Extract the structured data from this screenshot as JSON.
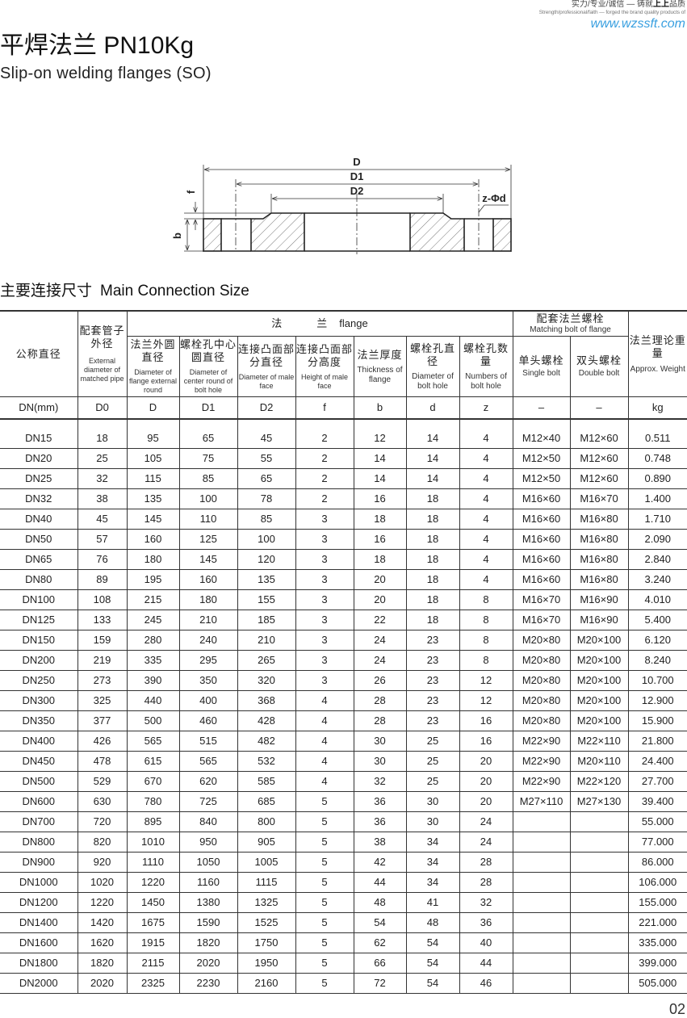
{
  "header": {
    "slogan_zh_prefix": "实力/专业/诚信 — 铸就",
    "slogan_zh_bold": "上上",
    "slogan_zh_suffix": "品质",
    "slogan_en": "Strength/professional/faith — forged the brand quality products of",
    "url": "www.wzssft.com"
  },
  "title": "平焊法兰 PN10Kg",
  "subtitle": "Slip-on welding flanges (SO)",
  "diagram": {
    "D": "D",
    "D1": "D1",
    "D2": "D2",
    "f": "f",
    "b": "b",
    "hole": "z-Φd"
  },
  "section": {
    "zh": "主要连接尺寸",
    "en": "Main Connection Size"
  },
  "table": {
    "group_flange_zh": "法　　　兰",
    "group_flange_en": "flange",
    "group_bolt_zh": "配套法兰螺栓",
    "group_bolt_en": "Matching bolt of flange",
    "columns": [
      {
        "zh": "公称直径",
        "en": "",
        "unit": "DN(mm)"
      },
      {
        "zh": "配套管子外径",
        "en": "External diameter of matched pipe",
        "unit": "D0"
      },
      {
        "zh": "法兰外圆直径",
        "en": "Diameter of flange external round",
        "unit": "D"
      },
      {
        "zh": "螺栓孔中心圆直径",
        "en": "Diameter of center round of bolt hole",
        "unit": "D1"
      },
      {
        "zh": "连接凸面部分直径",
        "en": "Diameter of male face",
        "unit": "D2"
      },
      {
        "zh": "连接凸面部分高度",
        "en": "Height of male face",
        "unit": "f"
      },
      {
        "zh": "法兰厚度",
        "en": "Thickness of flange",
        "unit": "b"
      },
      {
        "zh": "螺栓孔直 径",
        "en": "Diameter of bolt hole",
        "unit": "d"
      },
      {
        "zh": "螺栓孔数 量",
        "en": "Numbers of bolt hole",
        "unit": "z"
      },
      {
        "zh": "单头螺栓",
        "en": "Single bolt",
        "unit": "–"
      },
      {
        "zh": "双头螺栓",
        "en": "Double bolt",
        "unit": "–"
      },
      {
        "zh": "法兰理论重量",
        "en": "Approx. Weight",
        "unit": "kg"
      }
    ],
    "rows": [
      [
        "DN15",
        "18",
        "95",
        "65",
        "45",
        "2",
        "12",
        "14",
        "4",
        "M12×40",
        "M12×60",
        "0.511"
      ],
      [
        "DN20",
        "25",
        "105",
        "75",
        "55",
        "2",
        "14",
        "14",
        "4",
        "M12×50",
        "M12×60",
        "0.748"
      ],
      [
        "DN25",
        "32",
        "115",
        "85",
        "65",
        "2",
        "14",
        "14",
        "4",
        "M12×50",
        "M12×60",
        "0.890"
      ],
      [
        "DN32",
        "38",
        "135",
        "100",
        "78",
        "2",
        "16",
        "18",
        "4",
        "M16×60",
        "M16×70",
        "1.400"
      ],
      [
        "DN40",
        "45",
        "145",
        "110",
        "85",
        "3",
        "18",
        "18",
        "4",
        "M16×60",
        "M16×80",
        "1.710"
      ],
      [
        "DN50",
        "57",
        "160",
        "125",
        "100",
        "3",
        "16",
        "18",
        "4",
        "M16×60",
        "M16×80",
        "2.090"
      ],
      [
        "DN65",
        "76",
        "180",
        "145",
        "120",
        "3",
        "18",
        "18",
        "4",
        "M16×60",
        "M16×80",
        "2.840"
      ],
      [
        "DN80",
        "89",
        "195",
        "160",
        "135",
        "3",
        "20",
        "18",
        "4",
        "M16×60",
        "M16×80",
        "3.240"
      ],
      [
        "DN100",
        "108",
        "215",
        "180",
        "155",
        "3",
        "20",
        "18",
        "8",
        "M16×70",
        "M16×90",
        "4.010"
      ],
      [
        "DN125",
        "133",
        "245",
        "210",
        "185",
        "3",
        "22",
        "18",
        "8",
        "M16×70",
        "M16×90",
        "5.400"
      ],
      [
        "DN150",
        "159",
        "280",
        "240",
        "210",
        "3",
        "24",
        "23",
        "8",
        "M20×80",
        "M20×100",
        "6.120"
      ],
      [
        "DN200",
        "219",
        "335",
        "295",
        "265",
        "3",
        "24",
        "23",
        "8",
        "M20×80",
        "M20×100",
        "8.240"
      ],
      [
        "DN250",
        "273",
        "390",
        "350",
        "320",
        "3",
        "26",
        "23",
        "12",
        "M20×80",
        "M20×100",
        "10.700"
      ],
      [
        "DN300",
        "325",
        "440",
        "400",
        "368",
        "4",
        "28",
        "23",
        "12",
        "M20×80",
        "M20×100",
        "12.900"
      ],
      [
        "DN350",
        "377",
        "500",
        "460",
        "428",
        "4",
        "28",
        "23",
        "16",
        "M20×80",
        "M20×100",
        "15.900"
      ],
      [
        "DN400",
        "426",
        "565",
        "515",
        "482",
        "4",
        "30",
        "25",
        "16",
        "M22×90",
        "M22×110",
        "21.800"
      ],
      [
        "DN450",
        "478",
        "615",
        "565",
        "532",
        "4",
        "30",
        "25",
        "20",
        "M22×90",
        "M20×110",
        "24.400"
      ],
      [
        "DN500",
        "529",
        "670",
        "620",
        "585",
        "4",
        "32",
        "25",
        "20",
        "M22×90",
        "M22×120",
        "27.700"
      ],
      [
        "DN600",
        "630",
        "780",
        "725",
        "685",
        "5",
        "36",
        "30",
        "20",
        "M27×110",
        "M27×130",
        "39.400"
      ],
      [
        "DN700",
        "720",
        "895",
        "840",
        "800",
        "5",
        "36",
        "30",
        "24",
        "",
        "",
        "55.000"
      ],
      [
        "DN800",
        "820",
        "1010",
        "950",
        "905",
        "5",
        "38",
        "34",
        "24",
        "",
        "",
        "77.000"
      ],
      [
        "DN900",
        "920",
        "1110",
        "1050",
        "1005",
        "5",
        "42",
        "34",
        "28",
        "",
        "",
        "86.000"
      ],
      [
        "DN1000",
        "1020",
        "1220",
        "1160",
        "1115",
        "5",
        "44",
        "34",
        "28",
        "",
        "",
        "106.000"
      ],
      [
        "DN1200",
        "1220",
        "1450",
        "1380",
        "1325",
        "5",
        "48",
        "41",
        "32",
        "",
        "",
        "155.000"
      ],
      [
        "DN1400",
        "1420",
        "1675",
        "1590",
        "1525",
        "5",
        "54",
        "48",
        "36",
        "",
        "",
        "221.000"
      ],
      [
        "DN1600",
        "1620",
        "1915",
        "1820",
        "1750",
        "5",
        "62",
        "54",
        "40",
        "",
        "",
        "335.000"
      ],
      [
        "DN1800",
        "1820",
        "2115",
        "2020",
        "1950",
        "5",
        "66",
        "54",
        "44",
        "",
        "",
        "399.000"
      ],
      [
        "DN2000",
        "2020",
        "2325",
        "2230",
        "2160",
        "5",
        "72",
        "54",
        "46",
        "",
        "",
        "505.000"
      ]
    ]
  },
  "page_number": "02"
}
